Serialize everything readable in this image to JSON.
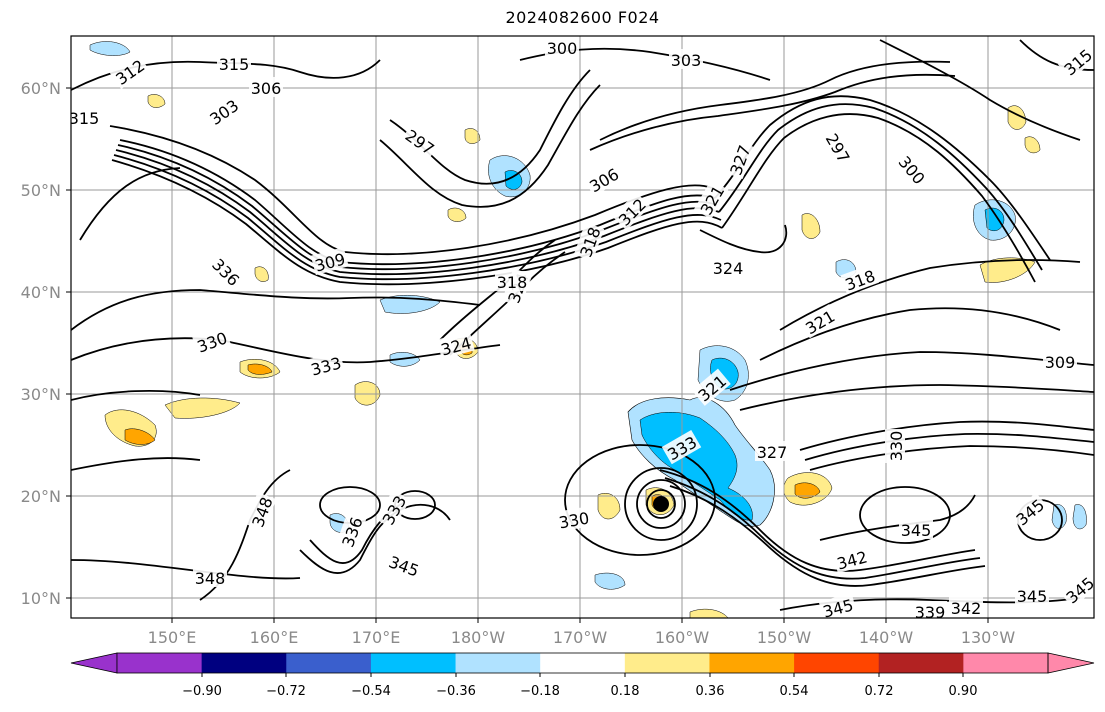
{
  "figure": {
    "title": "2024082600 F024"
  },
  "map": {
    "type": "filled-contour map with theta contours",
    "region": "North Pacific",
    "lat_ticks": [
      "10°N",
      "20°N",
      "30°N",
      "40°N",
      "50°N",
      "60°N"
    ],
    "lon_ticks": [
      "150°E",
      "160°E",
      "170°E",
      "180°W",
      "170°W",
      "160°W",
      "150°W",
      "140°W",
      "130°W"
    ],
    "grid": true,
    "contour_color": "#000000",
    "contour_labels": [
      "312",
      "315",
      "306",
      "303",
      "315",
      "300",
      "303",
      "315",
      "297",
      "306",
      "297",
      "300",
      "318",
      "312",
      "321",
      "324",
      "327",
      "309",
      "318",
      "336",
      "324",
      "330",
      "333",
      "324",
      "321",
      "318",
      "309",
      "321",
      "333",
      "327",
      "330",
      "345",
      "348",
      "336",
      "348",
      "333",
      "330",
      "345",
      "342",
      "342",
      "345",
      "345",
      "339",
      "345",
      "345"
    ]
  },
  "colorbar": {
    "tick_labels": [
      "−0.90",
      "−0.72",
      "−0.54",
      "−0.36",
      "−0.18",
      "0.18",
      "0.36",
      "0.54",
      "0.72",
      "0.90"
    ],
    "colors": [
      "#9932cc",
      "#000080",
      "#3a5fcd",
      "#00bfff",
      "#b0e2ff",
      "#ffffff",
      "#ffec8b",
      "#ffa500",
      "#ff4500",
      "#b22222",
      "#ff88aa",
      "#ff88aa"
    ],
    "extend": "both"
  }
}
